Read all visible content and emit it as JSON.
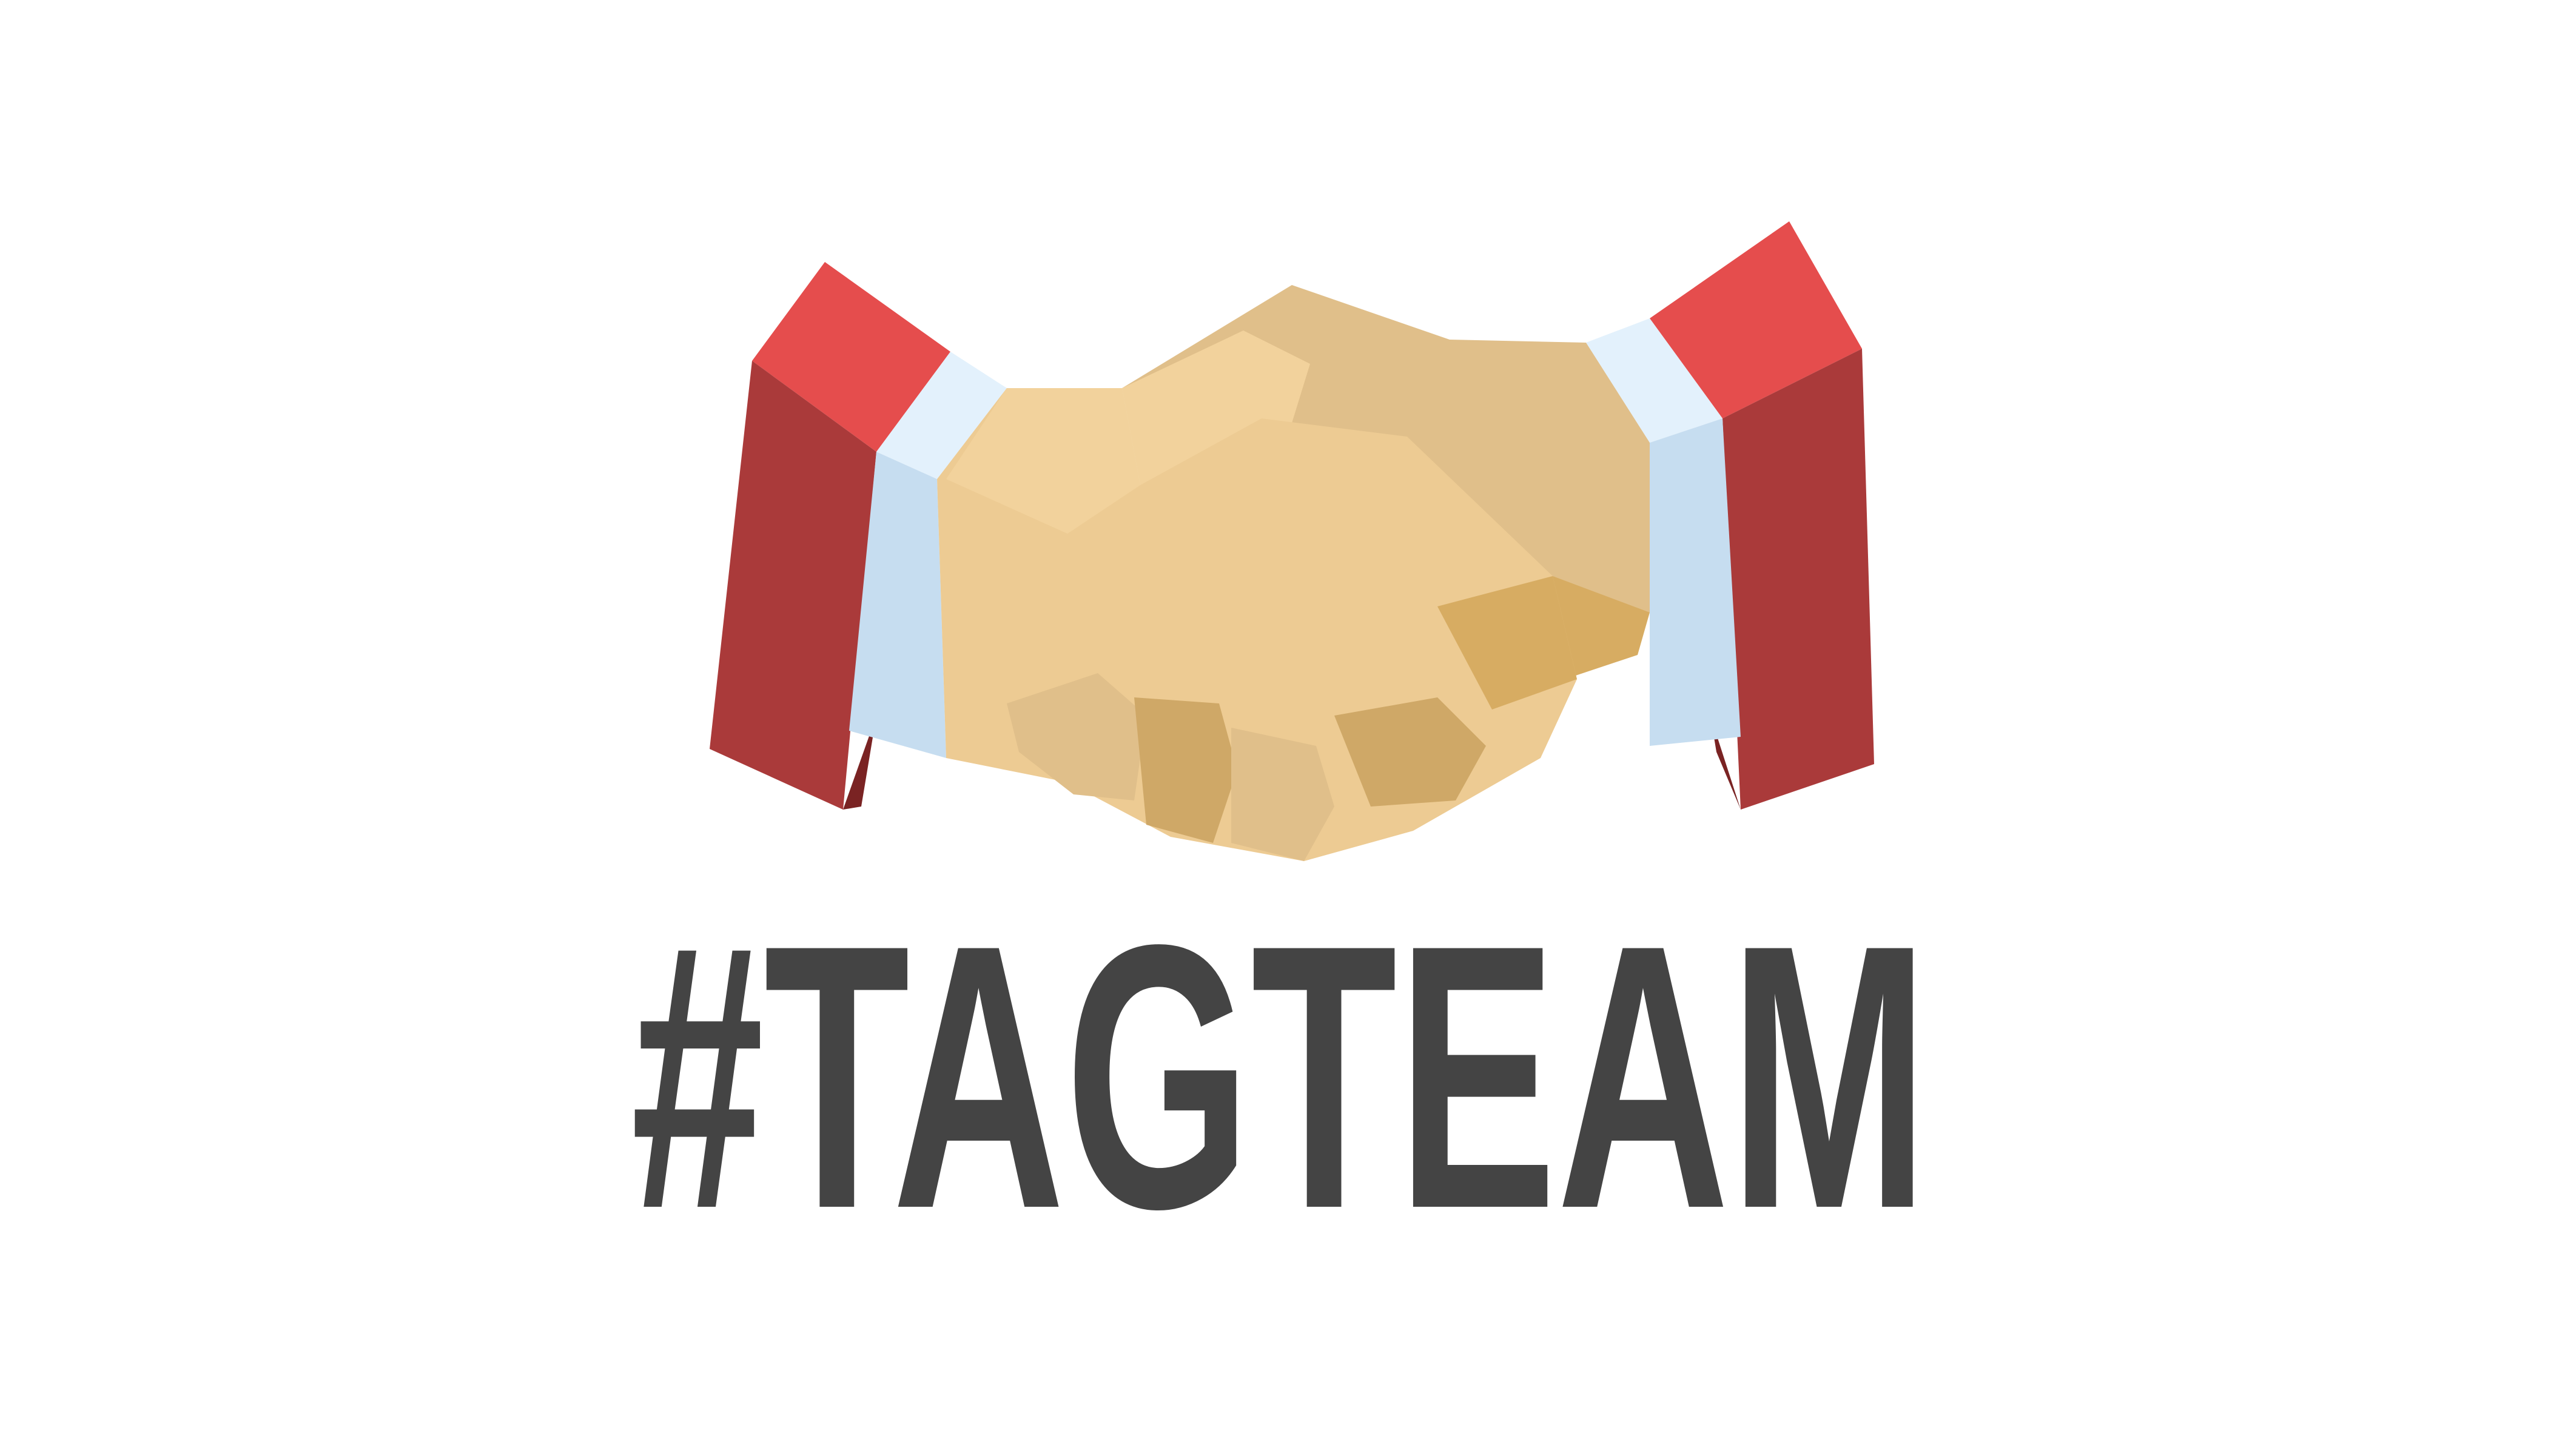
{
  "logo": {
    "wordmark": "#TAGTEAM",
    "wordmark_color": "#444444",
    "icon": "handshake-icon"
  },
  "colors": {
    "sleeve_red_light": "#E54D4D",
    "sleeve_red_dark": "#AA3A3A",
    "sleeve_red_shadow": "#7A2323",
    "cuff_light": "#E3F1FC",
    "cuff_blue": "#C6DDF0",
    "skin_light": "#F2D29C",
    "skin_mid": "#EDCB93",
    "skin_tan": "#E0BF8A",
    "skin_shadow": "#CFA867",
    "skin_dark": "#D7AC62",
    "background": "#FFFFFF"
  }
}
